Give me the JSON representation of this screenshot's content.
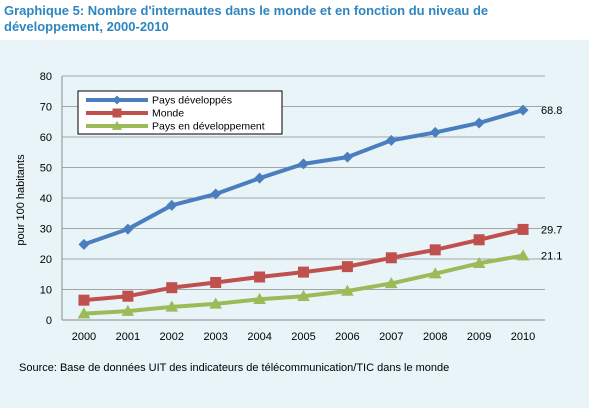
{
  "title": "Graphique 5: Nombre d'internautes dans le monde et en fonction du niveau de développement, 2000-2010",
  "source": "Source: Base de données  UIT des indicateurs  de télécommunication/TIC dans le monde",
  "colors": {
    "title": "#2e86c1",
    "panel": "#e8f4f8",
    "series": [
      "#4a7ebf",
      "#c0504d",
      "#9bbb59"
    ]
  },
  "chart_data": {
    "type": "line",
    "ylabel": "pour 100 habitants",
    "xlabel": "",
    "ylim": [
      0,
      80
    ],
    "yticks": [
      0,
      10,
      20,
      30,
      40,
      50,
      60,
      70,
      80
    ],
    "x": [
      "2000",
      "2001",
      "2002",
      "2003",
      "2004",
      "2005",
      "2006",
      "2007",
      "2008",
      "2009",
      "2010"
    ],
    "grid": "horizontal",
    "legend_position": "top-left",
    "series": [
      {
        "name": "Pays développés",
        "marker": "diamond",
        "values": [
          24.8,
          29.8,
          37.6,
          41.3,
          46.5,
          51.2,
          53.4,
          58.9,
          61.5,
          64.6,
          68.8
        ],
        "end_label": "68.8"
      },
      {
        "name": "Monde",
        "marker": "square",
        "values": [
          6.5,
          7.8,
          10.6,
          12.3,
          14.1,
          15.7,
          17.5,
          20.4,
          23.0,
          26.3,
          29.7
        ],
        "end_label": "29.7"
      },
      {
        "name": "Pays en développement",
        "marker": "triangle",
        "values": [
          2.1,
          2.9,
          4.3,
          5.3,
          6.8,
          7.8,
          9.5,
          12.0,
          15.2,
          18.6,
          21.1
        ],
        "end_label": "21.1"
      }
    ]
  }
}
